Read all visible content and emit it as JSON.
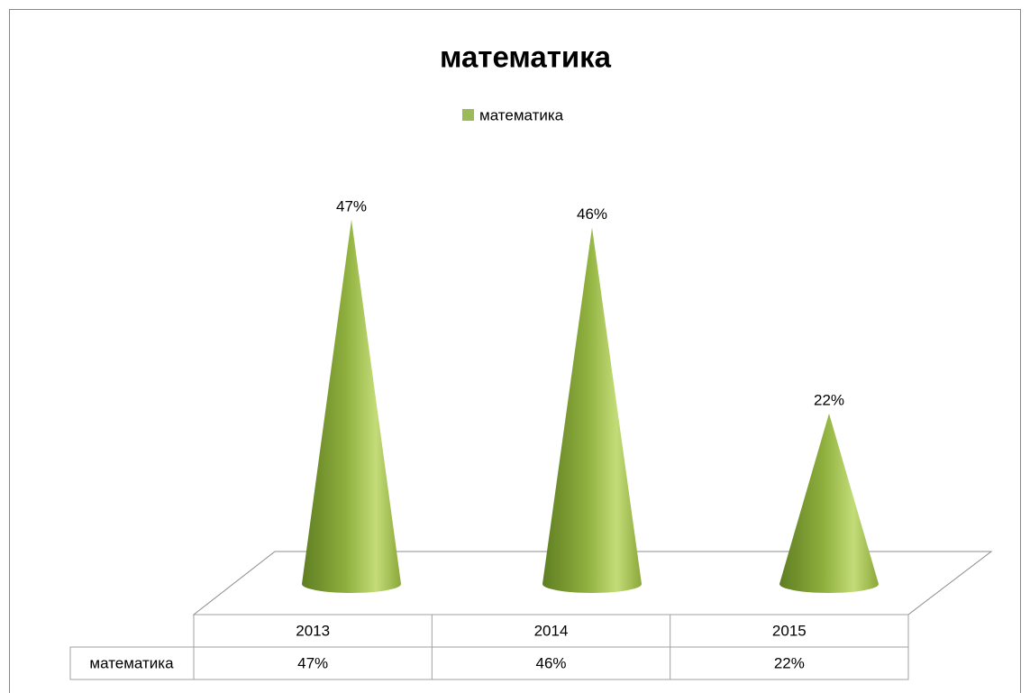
{
  "chart_data": {
    "type": "cone",
    "title": "математика",
    "categories": [
      "2013",
      "2014",
      "2015"
    ],
    "series": [
      {
        "name": "математика",
        "color": "#9bbb59",
        "values": [
          47,
          46,
          22
        ],
        "value_labels": [
          "47%",
          "46%",
          "22%"
        ]
      }
    ],
    "legend": "top",
    "data_table": true
  }
}
